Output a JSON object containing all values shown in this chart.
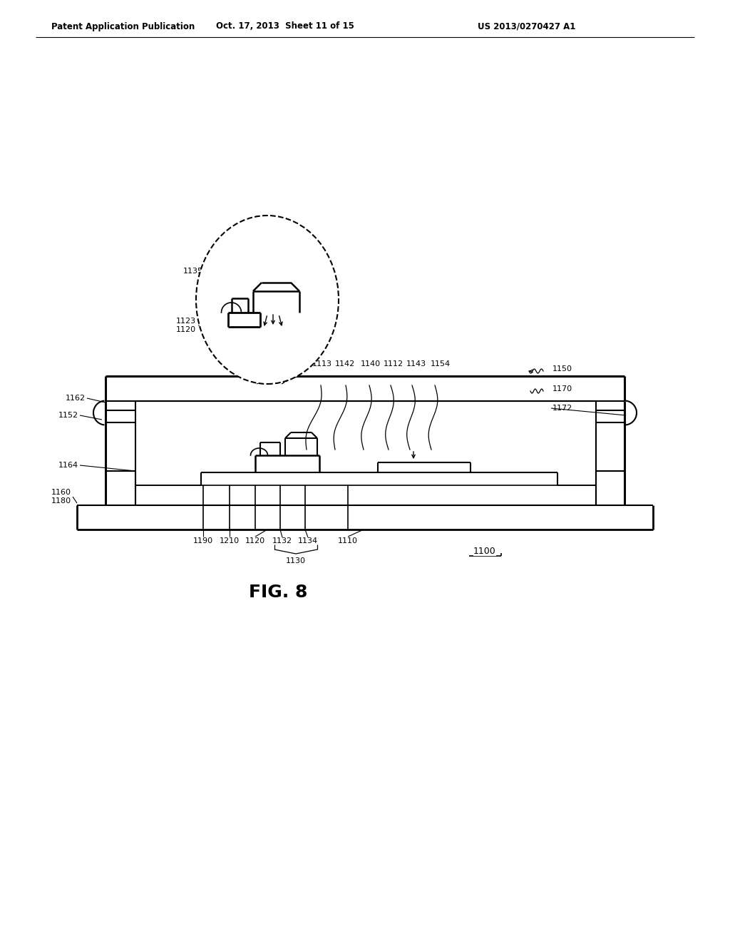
{
  "background_color": "#ffffff",
  "header_left": "Patent Application Publication",
  "header_mid": "Oct. 17, 2013  Sheet 11 of 15",
  "header_right": "US 2013/0270427 A1",
  "figure_label": "FIG. 8",
  "ref_number": "1100"
}
